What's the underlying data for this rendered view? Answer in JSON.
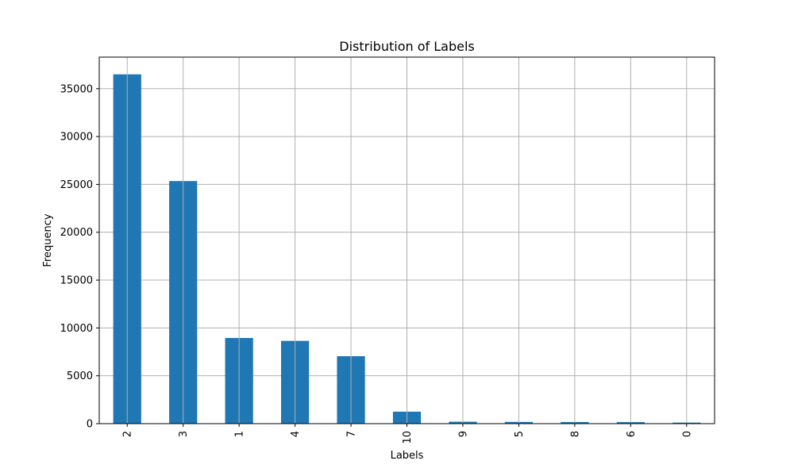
{
  "chart_data": {
    "type": "bar",
    "title": "Distribution of Labels",
    "xlabel": "Labels",
    "ylabel": "Frequency",
    "categories": [
      "2",
      "3",
      "1",
      "4",
      "7",
      "10",
      "9",
      "5",
      "8",
      "6",
      "0"
    ],
    "values": [
      36500,
      25350,
      8950,
      8650,
      7050,
      1250,
      200,
      180,
      170,
      160,
      110
    ],
    "ylim": [
      0,
      38300
    ],
    "yticks": [
      0,
      5000,
      10000,
      15000,
      20000,
      25000,
      30000,
      35000
    ],
    "grid": true,
    "bar_color": "#1f77b4",
    "grid_color": "#b0b0b0"
  }
}
